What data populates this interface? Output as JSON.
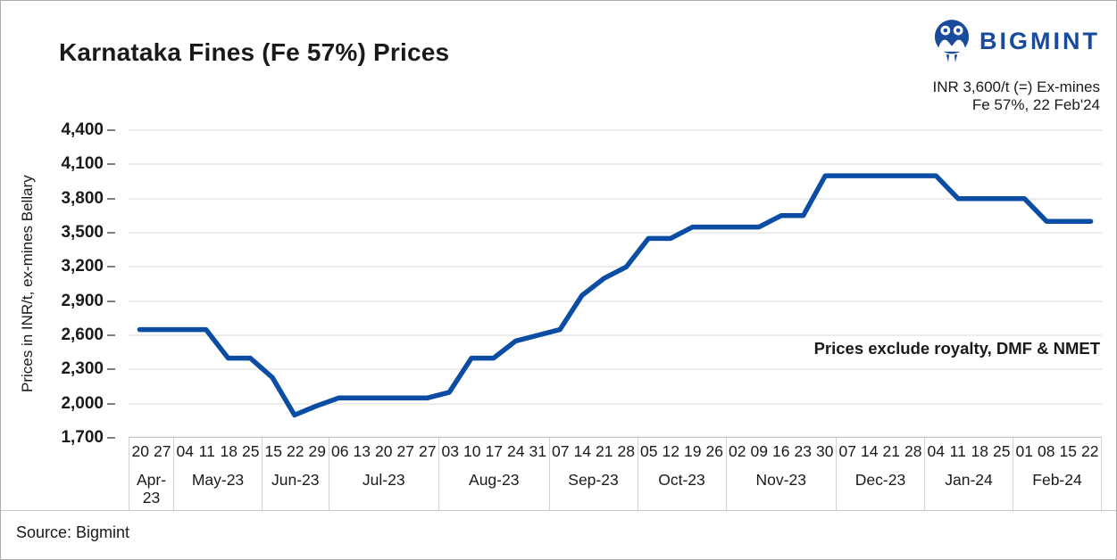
{
  "title": "Karnataka Fines (Fe 57%) Prices",
  "logo": {
    "brand": "BIGMINT"
  },
  "callout": {
    "line1": "INR 3,600/t (=) Ex-mines",
    "line2": "Fe 57%, 22 Feb'24"
  },
  "annotation": "Prices exclude royalty, DMF & NMET",
  "source": "Source: Bigmint",
  "colors": {
    "line": "#0b4da3",
    "brand": "#1a4a9c",
    "grid": "#ececec",
    "tick": "#7f7f7f",
    "table_border": "#d2d2d2",
    "text": "#1a1a1a"
  },
  "chart_data": {
    "type": "line",
    "title": "Karnataka Fines (Fe 57%) Prices",
    "xlabel": "",
    "ylabel": "Prices in INR/t, ex-mines Bellary",
    "ylim": [
      1700,
      4400
    ],
    "ytick_step": 300,
    "yticks": [
      "4,400",
      "4,100",
      "3,800",
      "3,500",
      "3,200",
      "2,900",
      "2,600",
      "2,300",
      "2,000",
      "1,700"
    ],
    "grid": "horizontal",
    "legend": "none",
    "series_name": "Karnataka Fines (Fe 57%) ex-mines Bellary price, INR/t",
    "groups": [
      {
        "month": "Apr-23",
        "days": [
          "20",
          "27"
        ],
        "values": [
          2650,
          2650
        ]
      },
      {
        "month": "May-23",
        "days": [
          "04",
          "11",
          "18",
          "25"
        ],
        "values": [
          2650,
          2650,
          2400,
          2400
        ]
      },
      {
        "month": "Jun-23",
        "days": [
          "15",
          "22",
          "29"
        ],
        "values": [
          2230,
          1900,
          1980
        ]
      },
      {
        "month": "Jul-23",
        "days": [
          "06",
          "13",
          "20",
          "27",
          "27"
        ],
        "values": [
          2050,
          2050,
          2050,
          2050,
          2050
        ]
      },
      {
        "month": "Aug-23",
        "days": [
          "03",
          "10",
          "17",
          "24",
          "31"
        ],
        "values": [
          2100,
          2400,
          2400,
          2550,
          2600
        ]
      },
      {
        "month": "Sep-23",
        "days": [
          "07",
          "14",
          "21",
          "28"
        ],
        "values": [
          2650,
          2950,
          3100,
          3200
        ]
      },
      {
        "month": "Oct-23",
        "days": [
          "05",
          "12",
          "19",
          "26"
        ],
        "values": [
          3450,
          3450,
          3550,
          3550
        ]
      },
      {
        "month": "Nov-23",
        "days": [
          "02",
          "09",
          "16",
          "23",
          "30"
        ],
        "values": [
          3550,
          3550,
          3650,
          3650,
          4000
        ]
      },
      {
        "month": "Dec-23",
        "days": [
          "07",
          "14",
          "21",
          "28"
        ],
        "values": [
          4000,
          4000,
          4000,
          4000
        ]
      },
      {
        "month": "Jan-24",
        "days": [
          "04",
          "11",
          "18",
          "25"
        ],
        "values": [
          4000,
          3800,
          3800,
          3800
        ]
      },
      {
        "month": "Feb-24",
        "days": [
          "01",
          "08",
          "15",
          "22"
        ],
        "values": [
          3800,
          3600,
          3600,
          3600
        ]
      }
    ]
  }
}
